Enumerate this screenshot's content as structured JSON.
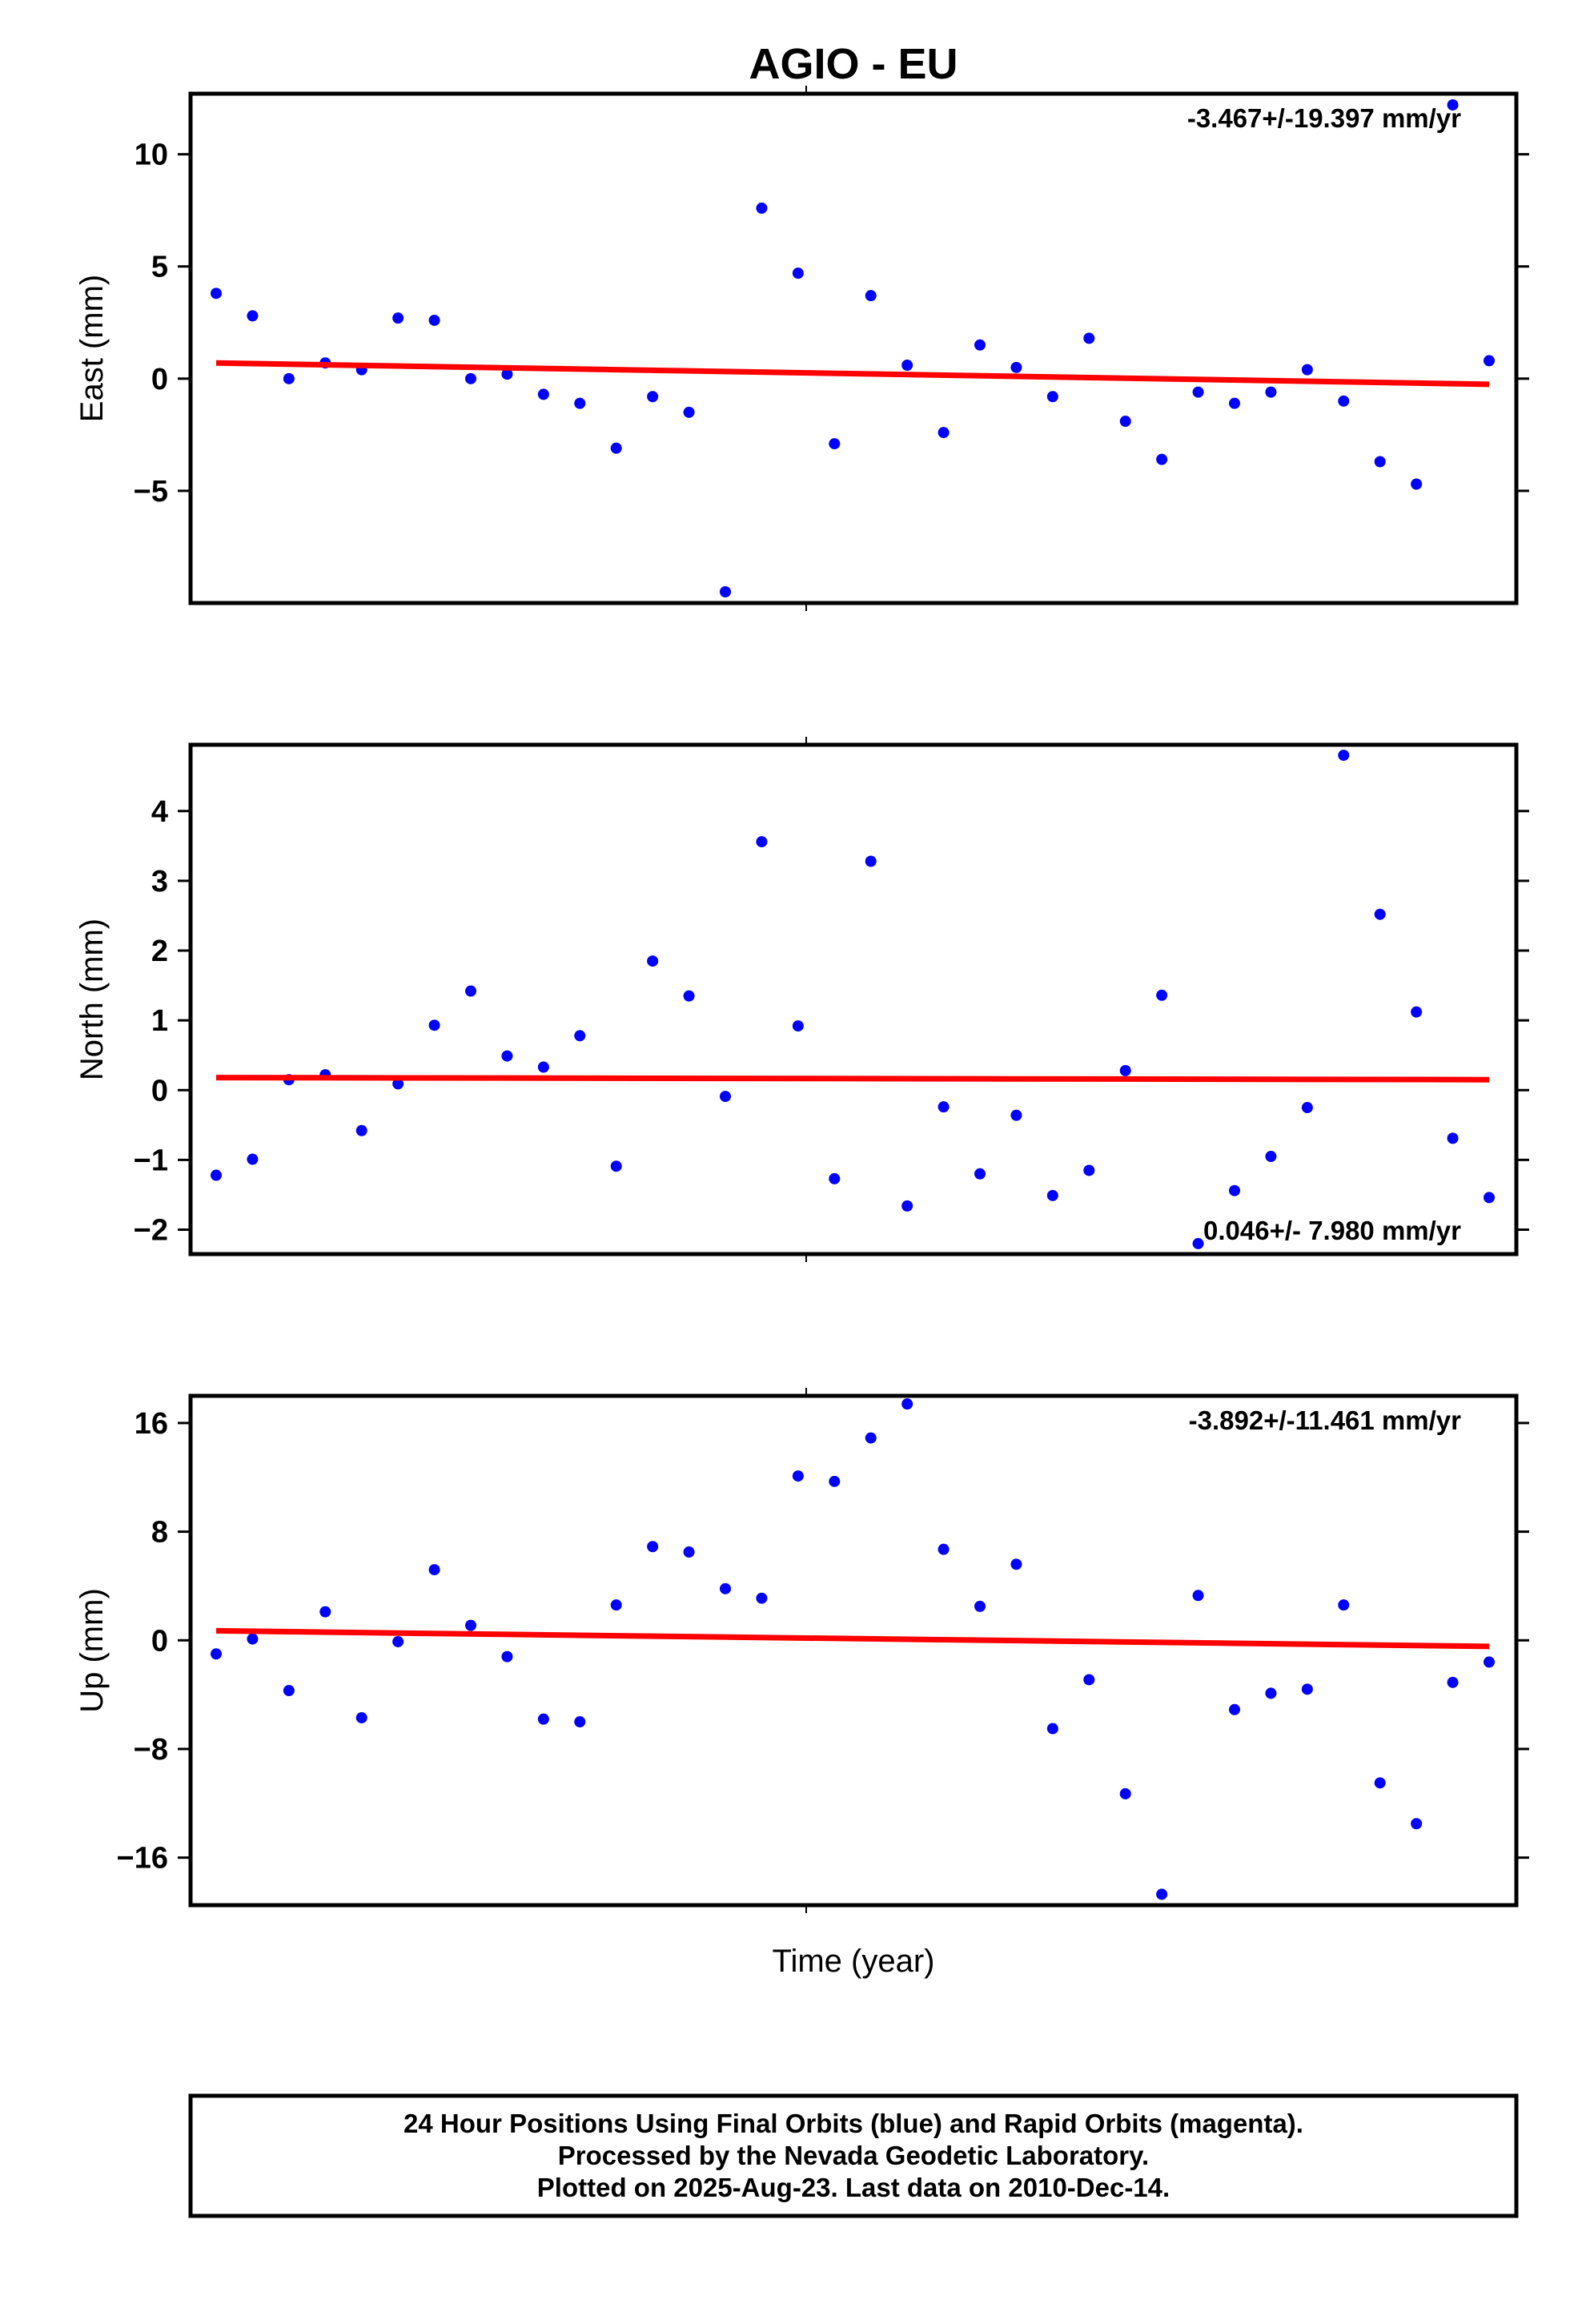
{
  "chart_data": {
    "type": "scatter",
    "title": "AGIO - EU",
    "xlabel": "Time (year)",
    "x": [
      1,
      2,
      3,
      4,
      5,
      6,
      7,
      8,
      9,
      10,
      11,
      12,
      13,
      14,
      15,
      16,
      17,
      18,
      19,
      20,
      21,
      22,
      23,
      24,
      25,
      26,
      27,
      28,
      29,
      30,
      31,
      32,
      33,
      34,
      35,
      36
    ],
    "panels": [
      {
        "ylabel": "East (mm)",
        "ylim": [
          -10,
          12.7
        ],
        "yticks": [
          10,
          5,
          0,
          -5
        ],
        "rate_label": "-3.467+/-19.397 mm/yr",
        "rate_label_position": "top-right",
        "trend": [
          0.7,
          -0.25
        ],
        "values": [
          3.8,
          2.8,
          0.0,
          0.7,
          0.4,
          2.7,
          2.6,
          0.0,
          0.2,
          -0.7,
          -1.1,
          -3.1,
          -0.8,
          -1.5,
          -9.5,
          7.6,
          4.7,
          -2.9,
          3.7,
          0.6,
          -2.4,
          1.5,
          0.5,
          -0.8,
          1.8,
          -1.9,
          -3.6,
          -0.6,
          -1.1,
          -0.6,
          0.4,
          -1.0,
          -3.7,
          -4.7,
          12.2,
          0.8
        ]
      },
      {
        "ylabel": "North (mm)",
        "ylim": [
          -2.35,
          4.95
        ],
        "yticks": [
          4,
          3,
          2,
          1,
          0,
          -1,
          -2
        ],
        "rate_label": "0.046+/- 7.980 mm/yr",
        "rate_label_position": "bottom-right",
        "trend": [
          0.18,
          0.15
        ],
        "values": [
          -1.22,
          -0.99,
          0.15,
          0.22,
          -0.58,
          0.09,
          0.93,
          1.42,
          0.49,
          0.33,
          0.78,
          -1.09,
          1.85,
          1.35,
          -0.09,
          3.56,
          0.92,
          -1.27,
          3.28,
          -1.66,
          -0.24,
          -1.2,
          -0.36,
          -1.51,
          -1.15,
          0.28,
          1.36,
          -2.2,
          -1.44,
          -0.95,
          -0.25,
          4.8,
          2.52,
          1.12,
          -0.69,
          -1.54
        ]
      },
      {
        "ylabel": "Up (mm)",
        "ylim": [
          -19.5,
          18
        ],
        "yticks": [
          16,
          8,
          0,
          -8,
          -16
        ],
        "rate_label": "-3.892+/-11.461 mm/yr",
        "rate_label_position": "top-right",
        "trend": [
          0.7,
          -0.45
        ],
        "values": [
          -1.0,
          0.1,
          -3.7,
          2.1,
          -5.7,
          -0.1,
          5.2,
          1.1,
          -1.2,
          -5.8,
          -6.0,
          2.6,
          6.9,
          6.5,
          3.8,
          3.1,
          12.1,
          11.7,
          14.9,
          17.4,
          6.7,
          2.5,
          5.6,
          -6.5,
          -2.9,
          -11.3,
          -18.7,
          3.3,
          -5.1,
          -3.9,
          -3.6,
          2.6,
          -10.5,
          -13.5,
          -3.1,
          -1.6
        ]
      }
    ],
    "point_color": "#0000ff",
    "trend_color": "#ff0000",
    "grid": false,
    "footer": [
      "24 Hour Positions Using Final Orbits (blue) and Rapid Orbits (magenta).",
      "Processed by the Nevada Geodetic Laboratory.",
      "Plotted on 2025-Aug-23. Last data on 2010-Dec-14."
    ]
  }
}
